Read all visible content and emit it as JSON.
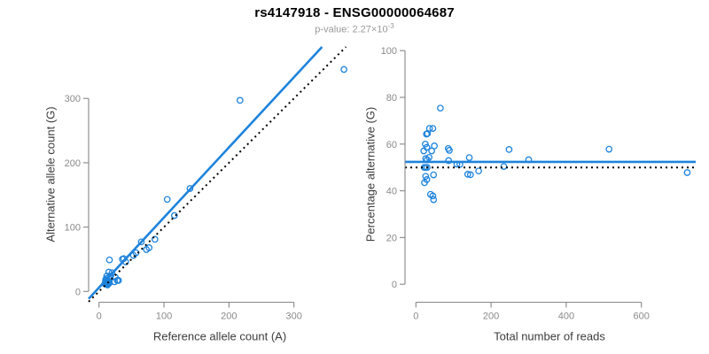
{
  "title": "rs4147918 - ENSG00000064687",
  "subtitle": {
    "prefix": "p-value: 2.27×10",
    "exponent": "-3"
  },
  "colors": {
    "point_blue": "#1e83dc",
    "fit_blue": "#1e83dc",
    "identity_black": "#000000",
    "axis_gray": "#878787",
    "tick_text_gray": "#8a8a8a",
    "label_text": "#3c3c3c",
    "subtitle_gray": "#9a9a9a"
  },
  "chart_data": [
    {
      "id": "allele-counts",
      "type": "scatter",
      "xlabel": "Reference allele count (A)",
      "ylabel": "Alternative allele count (G)",
      "xticks": [
        0,
        100,
        200,
        300
      ],
      "yticks": [
        0,
        100,
        200,
        300
      ],
      "xlim": [
        -16,
        393.2
      ],
      "ylim": [
        -16.8,
        380.1
      ],
      "grid": false,
      "legend": "none",
      "marker": "open-circle",
      "points": [
        [
          9,
          12
        ],
        [
          10,
          15
        ],
        [
          10,
          18
        ],
        [
          11,
          11
        ],
        [
          12,
          14
        ],
        [
          12,
          17
        ],
        [
          13,
          10
        ],
        [
          13,
          13
        ],
        [
          14,
          16
        ],
        [
          14,
          12
        ],
        [
          15,
          15
        ],
        [
          16,
          13
        ],
        [
          11,
          20
        ],
        [
          16,
          19
        ],
        [
          15,
          30
        ],
        [
          20,
          29
        ],
        [
          12,
          24
        ],
        [
          18,
          24
        ],
        [
          25,
          22
        ],
        [
          30,
          17
        ],
        [
          24,
          15
        ],
        [
          28,
          17
        ],
        [
          16,
          49
        ],
        [
          36,
          50
        ],
        [
          38,
          51
        ],
        [
          41,
          46
        ],
        [
          53,
          56
        ],
        [
          57,
          60
        ],
        [
          65,
          77
        ],
        [
          73,
          65
        ],
        [
          77,
          68
        ],
        [
          86,
          81
        ],
        [
          105,
          143
        ],
        [
          116,
          118
        ],
        [
          140,
          160
        ],
        [
          217,
          297
        ],
        [
          377,
          345
        ]
      ],
      "lines": [
        {
          "name": "fit-line",
          "slope": 1.09,
          "intercept": 6,
          "style": "solid",
          "color": "#1e83dc"
        },
        {
          "name": "identity-line",
          "slope": 1,
          "intercept": 0,
          "style": "dotted",
          "color": "#000000"
        }
      ]
    },
    {
      "id": "percentage-vs-reads",
      "type": "scatter",
      "xlabel": "Total number of reads",
      "ylabel": "Percentage alternative (G)",
      "xticks": [
        0,
        200,
        400,
        600
      ],
      "yticks": [
        0,
        20,
        40,
        60,
        80,
        100
      ],
      "xlim": [
        -29,
        744.6
      ],
      "ylim": [
        -7.7,
        101.6
      ],
      "grid": false,
      "legend": "none",
      "marker": "open-circle",
      "points": [
        [
          21,
          57.1
        ],
        [
          25,
          60
        ],
        [
          28,
          64.3
        ],
        [
          22,
          50
        ],
        [
          26,
          53.8
        ],
        [
          29,
          58.6
        ],
        [
          23,
          43.5
        ],
        [
          26,
          50
        ],
        [
          30,
          53.3
        ],
        [
          26,
          46.2
        ],
        [
          30,
          50
        ],
        [
          29,
          44.8
        ],
        [
          31,
          64.5
        ],
        [
          35,
          54.3
        ],
        [
          45,
          66.7
        ],
        [
          49,
          59.2
        ],
        [
          36,
          66.7
        ],
        [
          42,
          57.1
        ],
        [
          47,
          46.8
        ],
        [
          47,
          36.2
        ],
        [
          39,
          38.5
        ],
        [
          45,
          37.8
        ],
        [
          65,
          75.4
        ],
        [
          86,
          58.1
        ],
        [
          89,
          57.3
        ],
        [
          87,
          52.9
        ],
        [
          109,
          51.4
        ],
        [
          117,
          51.3
        ],
        [
          142,
          54.2
        ],
        [
          138,
          47.1
        ],
        [
          145,
          46.9
        ],
        [
          167,
          48.5
        ],
        [
          248,
          57.7
        ],
        [
          234,
          50.4
        ],
        [
          300,
          53.3
        ],
        [
          514,
          57.8
        ],
        [
          722,
          47.8
        ]
      ],
      "lines": [
        {
          "name": "mean-percentage-line",
          "slope": 0,
          "intercept": 52.4,
          "style": "solid",
          "color": "#1e83dc"
        },
        {
          "name": "fifty-percent-line",
          "slope": 0,
          "intercept": 50,
          "style": "dotted",
          "color": "#000000"
        }
      ]
    }
  ]
}
